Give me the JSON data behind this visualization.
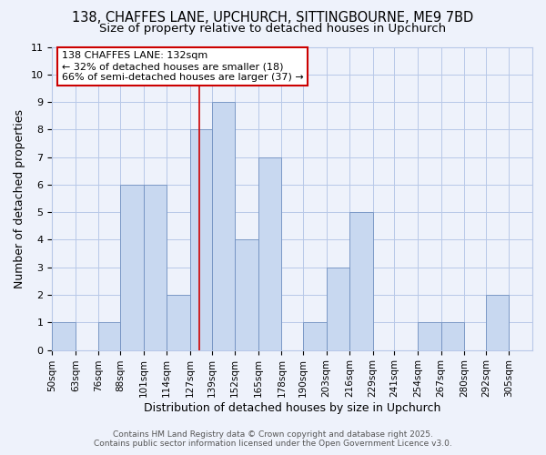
{
  "title": "138, CHAFFES LANE, UPCHURCH, SITTINGBOURNE, ME9 7BD",
  "subtitle": "Size of property relative to detached houses in Upchurch",
  "xlabel": "Distribution of detached houses by size in Upchurch",
  "ylabel": "Number of detached properties",
  "bin_labels": [
    "50sqm",
    "63sqm",
    "76sqm",
    "88sqm",
    "101sqm",
    "114sqm",
    "127sqm",
    "139sqm",
    "152sqm",
    "165sqm",
    "178sqm",
    "190sqm",
    "203sqm",
    "216sqm",
    "229sqm",
    "241sqm",
    "254sqm",
    "267sqm",
    "280sqm",
    "292sqm",
    "305sqm"
  ],
  "bin_edges": [
    50,
    63,
    76,
    88,
    101,
    114,
    127,
    139,
    152,
    165,
    178,
    190,
    203,
    216,
    229,
    241,
    254,
    267,
    280,
    292,
    305
  ],
  "counts": [
    1,
    0,
    1,
    6,
    6,
    2,
    8,
    9,
    4,
    7,
    0,
    1,
    3,
    5,
    0,
    0,
    1,
    1,
    0,
    2,
    0
  ],
  "bar_color": "#c8d8f0",
  "bar_edge_color": "#7090c0",
  "property_size": 132,
  "vline_color": "#cc0000",
  "ann_line1": "138 CHAFFES LANE: 132sqm",
  "ann_line2": "← 32% of detached houses are smaller (18)",
  "ann_line3": "66% of semi-detached houses are larger (37) →",
  "annotation_box_facecolor": "#ffffff",
  "annotation_box_edgecolor": "#cc0000",
  "ylim": [
    0,
    11
  ],
  "yticks": [
    0,
    1,
    2,
    3,
    4,
    5,
    6,
    7,
    8,
    9,
    10,
    11
  ],
  "footer_line1": "Contains HM Land Registry data © Crown copyright and database right 2025.",
  "footer_line2": "Contains public sector information licensed under the Open Government Licence v3.0.",
  "bg_color": "#eef2fb",
  "plot_bg_color": "#eef2fb",
  "grid_color": "#b8c8e8",
  "title_fontsize": 10.5,
  "subtitle_fontsize": 9.5,
  "axis_label_fontsize": 9,
  "tick_fontsize": 7.5,
  "annotation_fontsize": 8,
  "footer_fontsize": 6.5
}
